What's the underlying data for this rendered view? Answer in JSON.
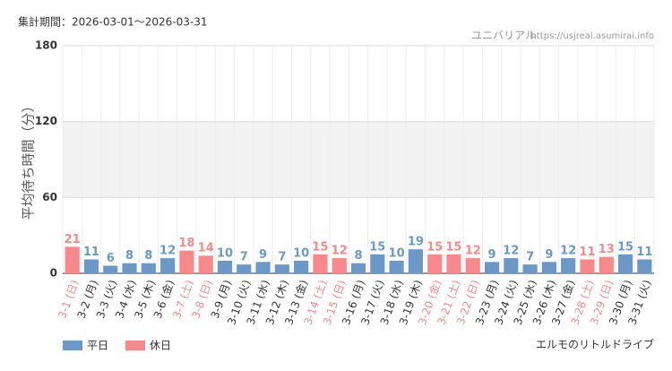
{
  "chart_data": {
    "type": "bar",
    "subtitle": "集計期間：2026-03-01～2026-03-31",
    "source": "ユニバリアル",
    "source_url": "https://usjreal.asumirai.info",
    "title": "エルモのリトルドライブ",
    "y_label": "平均待ち時間（分）",
    "categories": [
      "3-1 (日)",
      "3-2 (月)",
      "3-3 (火)",
      "3-4 (水)",
      "3-5 (木)",
      "3-6 (金)",
      "3-7 (土)",
      "3-8 (日)",
      "3-9 (月)",
      "3-10 (火)",
      "3-11 (水)",
      "3-12 (木)",
      "3-13 (金)",
      "3-14 (土)",
      "3-15 (日)",
      "3-16 (月)",
      "3-17 (火)",
      "3-18 (水)",
      "3-19 (木)",
      "3-20 (金)",
      "3-21 (土)",
      "3-22 (日)",
      "3-23 (月)",
      "3-24 (火)",
      "3-25 (水)",
      "3-26 (木)",
      "3-27 (金)",
      "3-28 (土)",
      "3-29 (日)",
      "3-30 (月)",
      "3-31 (火)"
    ],
    "series": [
      {
        "name": "平日",
        "color": "#6b98c6",
        "values": [
          null,
          11,
          6,
          8,
          8,
          12,
          null,
          null,
          10,
          7,
          9,
          7,
          10,
          null,
          null,
          8,
          15,
          10,
          19,
          null,
          null,
          null,
          9,
          12,
          7,
          9,
          12,
          null,
          null,
          15,
          11
        ]
      },
      {
        "name": "休日",
        "color": "#f7898c",
        "values": [
          21,
          null,
          null,
          null,
          null,
          null,
          18,
          14,
          null,
          null,
          null,
          null,
          null,
          15,
          12,
          null,
          null,
          null,
          null,
          15,
          15,
          12,
          null,
          null,
          null,
          null,
          null,
          11,
          13,
          null,
          null
        ]
      }
    ],
    "ylim": [
      0,
      180
    ],
    "yticks": [
      0,
      60,
      120,
      180
    ],
    "grid": true
  }
}
